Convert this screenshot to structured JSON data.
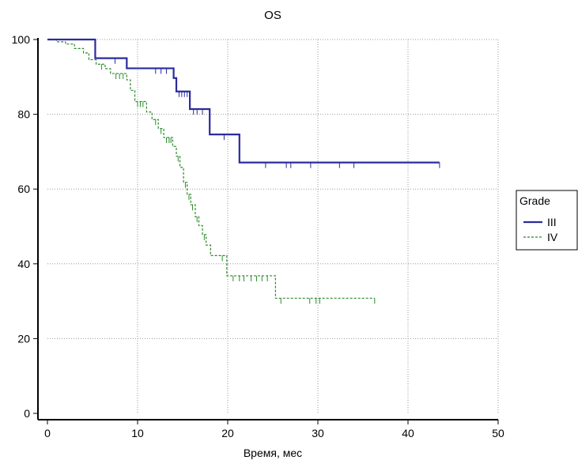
{
  "chart_data": {
    "type": "line",
    "step": true,
    "title": "OS",
    "xlabel": "Время, мес",
    "ylabel": "",
    "xlim": [
      0,
      50
    ],
    "ylim": [
      0,
      100
    ],
    "xticks": [
      0,
      10,
      20,
      30,
      40,
      50
    ],
    "yticks": [
      0,
      20,
      40,
      60,
      80,
      100
    ],
    "grid": true,
    "legend": {
      "title": "Grade",
      "position": "right"
    },
    "series": [
      {
        "name": "III",
        "color": "#2b2b9e",
        "style": "solid",
        "steps": [
          [
            0,
            100
          ],
          [
            5.3,
            100
          ],
          [
            5.3,
            95
          ],
          [
            8.8,
            95
          ],
          [
            8.8,
            92.3
          ],
          [
            14,
            92.3
          ],
          [
            14,
            89.7
          ],
          [
            14.3,
            89.7
          ],
          [
            14.3,
            86.1
          ],
          [
            15.8,
            86.1
          ],
          [
            15.8,
            81.4
          ],
          [
            18,
            81.4
          ],
          [
            18,
            74.6
          ],
          [
            21.3,
            74.6
          ],
          [
            21.3,
            67.1
          ],
          [
            43.5,
            67.1
          ]
        ],
        "censored": [
          [
            7.5,
            95
          ],
          [
            12,
            92.3
          ],
          [
            12.6,
            92.3
          ],
          [
            13.2,
            92.3
          ],
          [
            14.6,
            86.1
          ],
          [
            14.9,
            86.1
          ],
          [
            15.2,
            86.1
          ],
          [
            15.5,
            86.1
          ],
          [
            16.2,
            81.4
          ],
          [
            16.6,
            81.4
          ],
          [
            17.2,
            81.4
          ],
          [
            19.6,
            74.6
          ],
          [
            24.2,
            67.1
          ],
          [
            26.5,
            67.1
          ],
          [
            27,
            67.1
          ],
          [
            29.2,
            67.1
          ],
          [
            32.4,
            67.1
          ],
          [
            34,
            67.1
          ],
          [
            43.5,
            67.1
          ]
        ]
      },
      {
        "name": "IV",
        "color": "#2a8a2a",
        "style": "dashed",
        "steps": [
          [
            0,
            100
          ],
          [
            1,
            100
          ],
          [
            1,
            99.4
          ],
          [
            2,
            99.4
          ],
          [
            2,
            98.8
          ],
          [
            3,
            98.8
          ],
          [
            3,
            97.6
          ],
          [
            4,
            97.6
          ],
          [
            4,
            96.4
          ],
          [
            4.6,
            96.4
          ],
          [
            4.6,
            94.6
          ],
          [
            5.4,
            94.6
          ],
          [
            5.4,
            93.4
          ],
          [
            6.4,
            93.4
          ],
          [
            6.4,
            92.2
          ],
          [
            7,
            92.2
          ],
          [
            7,
            90.9
          ],
          [
            8.8,
            90.9
          ],
          [
            8.8,
            89.2
          ],
          [
            9.2,
            89.2
          ],
          [
            9.2,
            86.4
          ],
          [
            9.7,
            86.4
          ],
          [
            9.7,
            83.4
          ],
          [
            11,
            83.4
          ],
          [
            11,
            80.6
          ],
          [
            11.6,
            80.6
          ],
          [
            11.6,
            78.6
          ],
          [
            12.3,
            78.6
          ],
          [
            12.3,
            76.2
          ],
          [
            12.9,
            76.2
          ],
          [
            12.9,
            73.8
          ],
          [
            13.9,
            73.8
          ],
          [
            13.9,
            71.4
          ],
          [
            14.3,
            71.4
          ],
          [
            14.3,
            68.8
          ],
          [
            14.7,
            68.8
          ],
          [
            14.7,
            65.8
          ],
          [
            15.1,
            65.8
          ],
          [
            15.1,
            61.8
          ],
          [
            15.5,
            61.8
          ],
          [
            15.5,
            58.6
          ],
          [
            15.9,
            58.6
          ],
          [
            15.9,
            55.8
          ],
          [
            16.4,
            55.8
          ],
          [
            16.4,
            52.6
          ],
          [
            16.8,
            52.6
          ],
          [
            16.8,
            50.2
          ],
          [
            17.2,
            50.2
          ],
          [
            17.2,
            47.8
          ],
          [
            17.6,
            47.8
          ],
          [
            17.6,
            45
          ],
          [
            18.1,
            45
          ],
          [
            18.1,
            42.2
          ],
          [
            19.9,
            42.2
          ],
          [
            19.9,
            36.8
          ],
          [
            25.3,
            36.8
          ],
          [
            25.3,
            30.8
          ],
          [
            36.3,
            30.8
          ]
        ],
        "censored": [
          [
            6,
            93.4
          ],
          [
            7.6,
            90.9
          ],
          [
            8,
            90.9
          ],
          [
            8.4,
            90.9
          ],
          [
            10,
            83.4
          ],
          [
            10.3,
            83.4
          ],
          [
            10.6,
            83.4
          ],
          [
            12,
            78.6
          ],
          [
            12.6,
            76.2
          ],
          [
            13.2,
            73.8
          ],
          [
            13.5,
            73.8
          ],
          [
            13.7,
            73.8
          ],
          [
            14.5,
            68.8
          ],
          [
            15.3,
            61.8
          ],
          [
            15.7,
            58.6
          ],
          [
            16.1,
            55.8
          ],
          [
            16.6,
            52.6
          ],
          [
            17.4,
            47.8
          ],
          [
            19.4,
            42.2
          ],
          [
            20.6,
            36.8
          ],
          [
            21.3,
            36.8
          ],
          [
            21.8,
            36.8
          ],
          [
            22.6,
            36.8
          ],
          [
            23.2,
            36.8
          ],
          [
            23.8,
            36.8
          ],
          [
            24.4,
            36.8
          ],
          [
            25.9,
            30.8
          ],
          [
            29.1,
            30.8
          ],
          [
            29.8,
            30.8
          ],
          [
            30.2,
            30.8
          ],
          [
            36.3,
            30.8
          ]
        ]
      }
    ]
  }
}
